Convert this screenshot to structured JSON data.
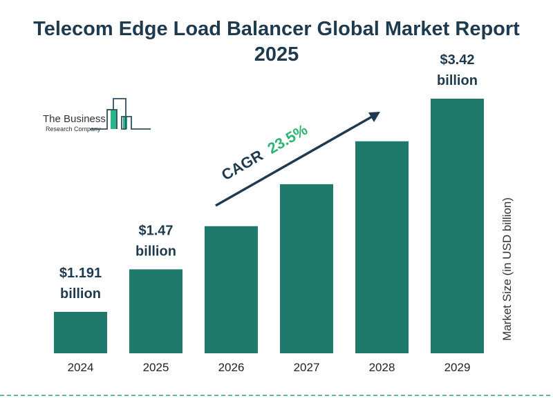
{
  "chart_data": {
    "type": "bar",
    "title": "Telecom Edge Load Balancer Global Market Report 2025",
    "categories": [
      "2024",
      "2025",
      "2026",
      "2027",
      "2028",
      "2029"
    ],
    "values": [
      1.191,
      1.47,
      1.82,
      2.24,
      2.77,
      3.42
    ],
    "data_labels": [
      {
        "index": 0,
        "line1": "$1.191",
        "line2": "billion"
      },
      {
        "index": 1,
        "line1": "$1.47",
        "line2": "billion"
      },
      {
        "index": 5,
        "line1": "$3.42",
        "line2": "billion"
      }
    ],
    "ylabel": "Market Size (in USD billion)",
    "xlabel": "",
    "cagr_label": "CAGR",
    "cagr_value": "23.5%",
    "grid": false,
    "colors": {
      "bar": "#1f7a6b",
      "title": "#1e3a4f",
      "cagr": "#2bb673",
      "dashed_line": "#2a9d8f"
    }
  },
  "logo": {
    "line1": "The Business",
    "line2": "Research Company"
  }
}
